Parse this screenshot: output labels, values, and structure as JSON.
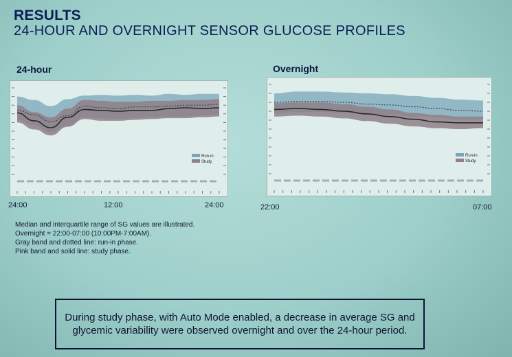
{
  "slide": {
    "heading": "RESULTS",
    "subheading": "24-HOUR  AND OVERNIGHT SENSOR GLUCOSE PROFILES",
    "notes": [
      "Median and interquartile range of SG values are illustrated.",
      "Overnight = 22:00-07:00 (10:00PM-7:00AM).",
      "Gray band and dotted line: run-in phase.",
      "Pink band and solid line: study phase."
    ],
    "callout": "During study phase, with Auto Mode enabled, a decrease in average SG and glycemic variability were observed overnight and over the 24-hour period."
  },
  "colors": {
    "runin_band": "#7aa6b8",
    "study_band": "#8f7f86",
    "study_line": "#2a2a2a",
    "runin_line": "#3a4050"
  },
  "chart_data": [
    {
      "type": "area",
      "title": "24-hour",
      "x_tick_labels": [
        "24:00",
        "12:00",
        "24:00"
      ],
      "xlim": [
        0,
        24
      ],
      "ylim": [
        0,
        1
      ],
      "legend": [
        "Run-in",
        "Study"
      ],
      "legend_position": "bottom-right",
      "series": [
        {
          "name": "Run-in",
          "style": "band + dotted median",
          "x": [
            0,
            2,
            4,
            6,
            8,
            10,
            12,
            14,
            16,
            18,
            20,
            22,
            24
          ],
          "low": [
            0.63,
            0.57,
            0.49,
            0.56,
            0.66,
            0.65,
            0.64,
            0.65,
            0.66,
            0.67,
            0.67,
            0.68,
            0.69
          ],
          "median": [
            0.74,
            0.69,
            0.61,
            0.68,
            0.79,
            0.77,
            0.76,
            0.78,
            0.78,
            0.79,
            0.8,
            0.8,
            0.81
          ],
          "high": [
            0.9,
            0.86,
            0.79,
            0.87,
            0.91,
            0.92,
            0.91,
            0.92,
            0.91,
            0.93,
            0.92,
            0.93,
            0.93
          ]
        },
        {
          "name": "Study",
          "style": "band + solid median",
          "x": [
            0,
            2,
            4,
            6,
            8,
            10,
            12,
            14,
            16,
            18,
            20,
            22,
            24
          ],
          "low": [
            0.6,
            0.52,
            0.45,
            0.55,
            0.64,
            0.62,
            0.62,
            0.63,
            0.64,
            0.65,
            0.65,
            0.66,
            0.67
          ],
          "median": [
            0.71,
            0.62,
            0.54,
            0.66,
            0.75,
            0.74,
            0.73,
            0.74,
            0.74,
            0.76,
            0.77,
            0.76,
            0.77
          ],
          "high": [
            0.8,
            0.72,
            0.66,
            0.76,
            0.86,
            0.85,
            0.84,
            0.84,
            0.85,
            0.85,
            0.86,
            0.86,
            0.87
          ]
        }
      ]
    },
    {
      "type": "area",
      "title": "Overnight",
      "x_tick_labels": [
        "22:00",
        "07:00"
      ],
      "xlim": [
        22,
        31
      ],
      "ylim": [
        0,
        1
      ],
      "legend": [
        "Run-in",
        "Study"
      ],
      "legend_position": "bottom-right",
      "series": [
        {
          "name": "Run-in",
          "style": "band + dotted median",
          "x": [
            22,
            23,
            24,
            25,
            26,
            27,
            28,
            29,
            30,
            31
          ],
          "low": [
            0.68,
            0.69,
            0.69,
            0.68,
            0.67,
            0.66,
            0.64,
            0.63,
            0.61,
            0.61
          ],
          "median": [
            0.8,
            0.81,
            0.81,
            0.8,
            0.78,
            0.77,
            0.75,
            0.73,
            0.71,
            0.7
          ],
          "high": [
            0.9,
            0.92,
            0.92,
            0.91,
            0.9,
            0.89,
            0.87,
            0.85,
            0.83,
            0.82
          ]
        },
        {
          "name": "Study",
          "style": "band + solid median",
          "x": [
            22,
            23,
            24,
            25,
            26,
            27,
            28,
            29,
            30,
            31
          ],
          "low": [
            0.64,
            0.65,
            0.64,
            0.62,
            0.59,
            0.56,
            0.53,
            0.51,
            0.5,
            0.51
          ],
          "median": [
            0.72,
            0.73,
            0.72,
            0.7,
            0.67,
            0.64,
            0.61,
            0.58,
            0.57,
            0.57
          ],
          "high": [
            0.79,
            0.8,
            0.8,
            0.78,
            0.75,
            0.72,
            0.68,
            0.66,
            0.64,
            0.64
          ]
        }
      ]
    }
  ]
}
